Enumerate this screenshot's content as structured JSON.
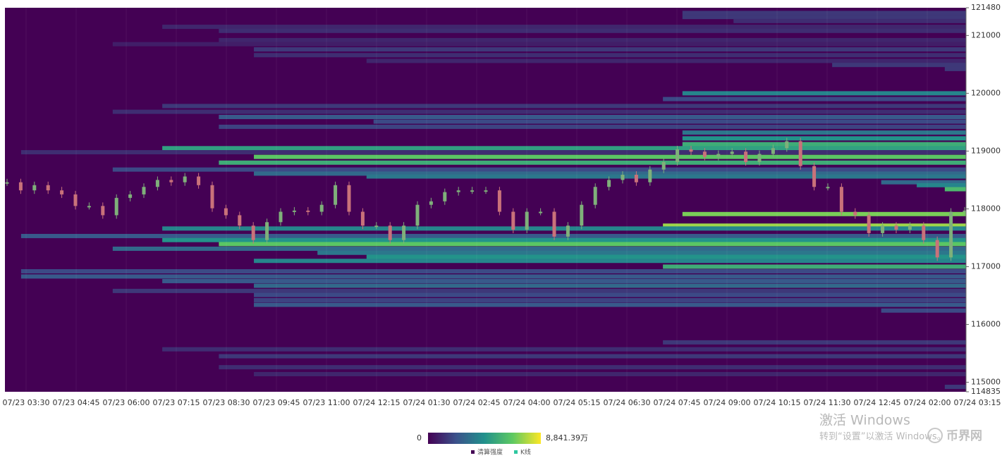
{
  "chart_data": {
    "type": "heatmap",
    "categories": [
      "07/23 03:30",
      "07/23 04:45",
      "07/23 06:00",
      "07/23 07:15",
      "07/23 08:30",
      "07/23 09:45",
      "07/23 11:00",
      "07/24 12:15",
      "07/24 01:30",
      "07/24 02:45",
      "07/24 04:00",
      "07/24 05:15",
      "07/24 06:30",
      "07/24 07:45",
      "07/24 09:00",
      "07/24 10:15",
      "07/24 11:30",
      "07/24 12:45",
      "07/24 02:00",
      "07/24 03:15"
    ],
    "ylim": [
      114835,
      121480
    ],
    "yticks": [
      114835,
      115000,
      116000,
      117000,
      118000,
      119000,
      120000,
      121000,
      121480
    ],
    "grid": true,
    "visual_map": {
      "min": 0,
      "max": 8841.39,
      "min_label": "0",
      "max_label": "8,841.39万",
      "colors": [
        "#440154",
        "#3b528b",
        "#21918c",
        "#5ec962",
        "#fde725"
      ]
    },
    "legend": [
      {
        "name": "清算强度",
        "color": "#440154"
      },
      {
        "name": "K线",
        "color": "#2ec7a0"
      }
    ],
    "bands": [
      {
        "price": 121390,
        "start": 13.11,
        "value": 1500
      },
      {
        "price": 121320,
        "start": 13.11,
        "value": 1500
      },
      {
        "price": 121250,
        "start": 14.13,
        "value": 1200
      },
      {
        "price": 121150,
        "start": 2.72,
        "value": 1000
      },
      {
        "price": 121080,
        "start": 3.85,
        "value": 1200
      },
      {
        "price": 120920,
        "start": 3.85,
        "value": 1000
      },
      {
        "price": 120850,
        "start": 1.73,
        "value": 800
      },
      {
        "price": 120760,
        "start": 4.55,
        "value": 1500
      },
      {
        "price": 120660,
        "start": 4.55,
        "value": 1200
      },
      {
        "price": 120560,
        "start": 6.8,
        "value": 1000
      },
      {
        "price": 120490,
        "start": 16.1,
        "value": 1500
      },
      {
        "price": 120420,
        "start": 18.35,
        "value": 1500
      },
      {
        "price": 120000,
        "start": 13.11,
        "value": 4000
      },
      {
        "price": 119900,
        "start": 12.72,
        "value": 2000
      },
      {
        "price": 119780,
        "start": 2.72,
        "value": 1500
      },
      {
        "price": 119680,
        "start": 1.73,
        "value": 1200
      },
      {
        "price": 119590,
        "start": 3.85,
        "value": 2500
      },
      {
        "price": 119510,
        "start": 6.94,
        "value": 2000
      },
      {
        "price": 119420,
        "start": 3.85,
        "value": 1800
      },
      {
        "price": 119320,
        "start": 13.11,
        "value": 3500
      },
      {
        "price": 119220,
        "start": 13.11,
        "value": 4500
      },
      {
        "price": 119120,
        "start": 13.11,
        "value": 5500
      },
      {
        "price": 119050,
        "start": 2.72,
        "value": 5000
      },
      {
        "price": 118980,
        "start": -0.1,
        "value": 1200
      },
      {
        "price": 118900,
        "start": 4.55,
        "value": 6500
      },
      {
        "price": 118800,
        "start": 3.85,
        "value": 5500
      },
      {
        "price": 118680,
        "start": 1.73,
        "value": 2000
      },
      {
        "price": 118610,
        "start": 4.55,
        "value": 3000
      },
      {
        "price": 118560,
        "start": 6.8,
        "value": 3500
      },
      {
        "price": 118460,
        "start": 17.08,
        "value": 3000
      },
      {
        "price": 118410,
        "start": 17.79,
        "value": 4000
      },
      {
        "price": 118340,
        "start": 18.35,
        "value": 6000
      },
      {
        "price": 117910,
        "start": 13.11,
        "value": 7000
      },
      {
        "price": 117710,
        "start": 12.72,
        "value": 7500
      },
      {
        "price": 117660,
        "start": 2.72,
        "value": 4000
      },
      {
        "price": 117530,
        "start": -0.1,
        "value": 2500
      },
      {
        "price": 117460,
        "start": 2.72,
        "value": 4500
      },
      {
        "price": 117390,
        "start": 3.85,
        "value": 6500
      },
      {
        "price": 117310,
        "start": 1.73,
        "value": 3000
      },
      {
        "price": 117240,
        "start": 5.82,
        "value": 3500
      },
      {
        "price": 117170,
        "start": 6.8,
        "value": 4500
      },
      {
        "price": 117100,
        "start": 4.55,
        "value": 4000
      },
      {
        "price": 117000,
        "start": 12.72,
        "value": 5500
      },
      {
        "price": 116920,
        "start": -0.1,
        "value": 2000
      },
      {
        "price": 116830,
        "start": -0.1,
        "value": 2500
      },
      {
        "price": 116750,
        "start": 2.72,
        "value": 2500
      },
      {
        "price": 116670,
        "start": 4.55,
        "value": 3000
      },
      {
        "price": 116580,
        "start": 1.73,
        "value": 1500
      },
      {
        "price": 116510,
        "start": 4.55,
        "value": 2000
      },
      {
        "price": 116420,
        "start": 4.55,
        "value": 1800
      },
      {
        "price": 116340,
        "start": 4.55,
        "value": 2500
      },
      {
        "price": 116240,
        "start": 17.08,
        "value": 2000
      },
      {
        "price": 115690,
        "start": 12.72,
        "value": 1500
      },
      {
        "price": 115570,
        "start": 2.72,
        "value": 1200
      },
      {
        "price": 115450,
        "start": 3.85,
        "value": 1500
      },
      {
        "price": 115260,
        "start": 3.85,
        "value": 1200
      },
      {
        "price": 115140,
        "start": 4.55,
        "value": 1000
      },
      {
        "price": 114920,
        "start": 18.35,
        "value": 1500
      }
    ],
    "candles": {
      "close": [
        118460,
        118320,
        118410,
        118320,
        118250,
        118050,
        118050,
        117890,
        118190,
        118250,
        118380,
        118500,
        118460,
        118560,
        118410,
        118010,
        117890,
        117710,
        117460,
        117770,
        117950,
        117970,
        117950,
        118070,
        118410,
        117950,
        117710,
        117710,
        117460,
        117710,
        118070,
        118130,
        118290,
        118320,
        118320,
        118320,
        117950,
        117640,
        117950,
        117950,
        117520,
        117710,
        118070,
        118380,
        118500,
        118590,
        118460,
        118680,
        118810,
        119030,
        118990,
        118900,
        118950,
        118990,
        118810,
        118950,
        119050,
        119170,
        118740,
        118380,
        118380,
        117950,
        117890,
        117580,
        117710,
        117640,
        117710,
        117460,
        117160,
        117950,
        117970
      ]
    }
  },
  "overlay": {
    "activate_title": "激活 Windows",
    "activate_hint": "转到“设置”以激活 Windows。",
    "logo": "币界网"
  }
}
